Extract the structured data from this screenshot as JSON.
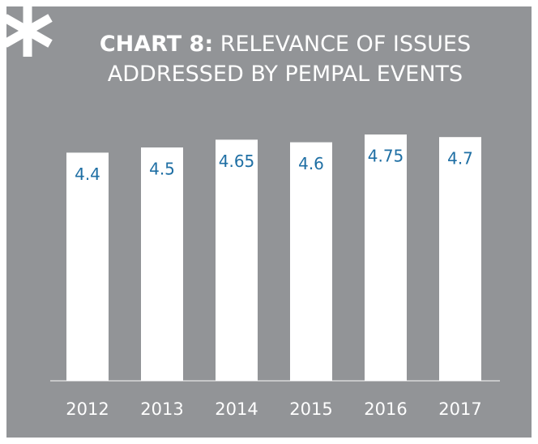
{
  "chart_data": {
    "type": "bar",
    "chart_label": "CHART 8:",
    "title": "RELEVANCE OF ISSUES ADDRESSED BY PEMPAL EVENTS",
    "categories": [
      "2012",
      "2013",
      "2014",
      "2015",
      "2016",
      "2017"
    ],
    "values": [
      4.4,
      4.5,
      4.65,
      4.6,
      4.75,
      4.7
    ],
    "color": "#ffffff",
    "label_color": "#1f6fa4"
  }
}
